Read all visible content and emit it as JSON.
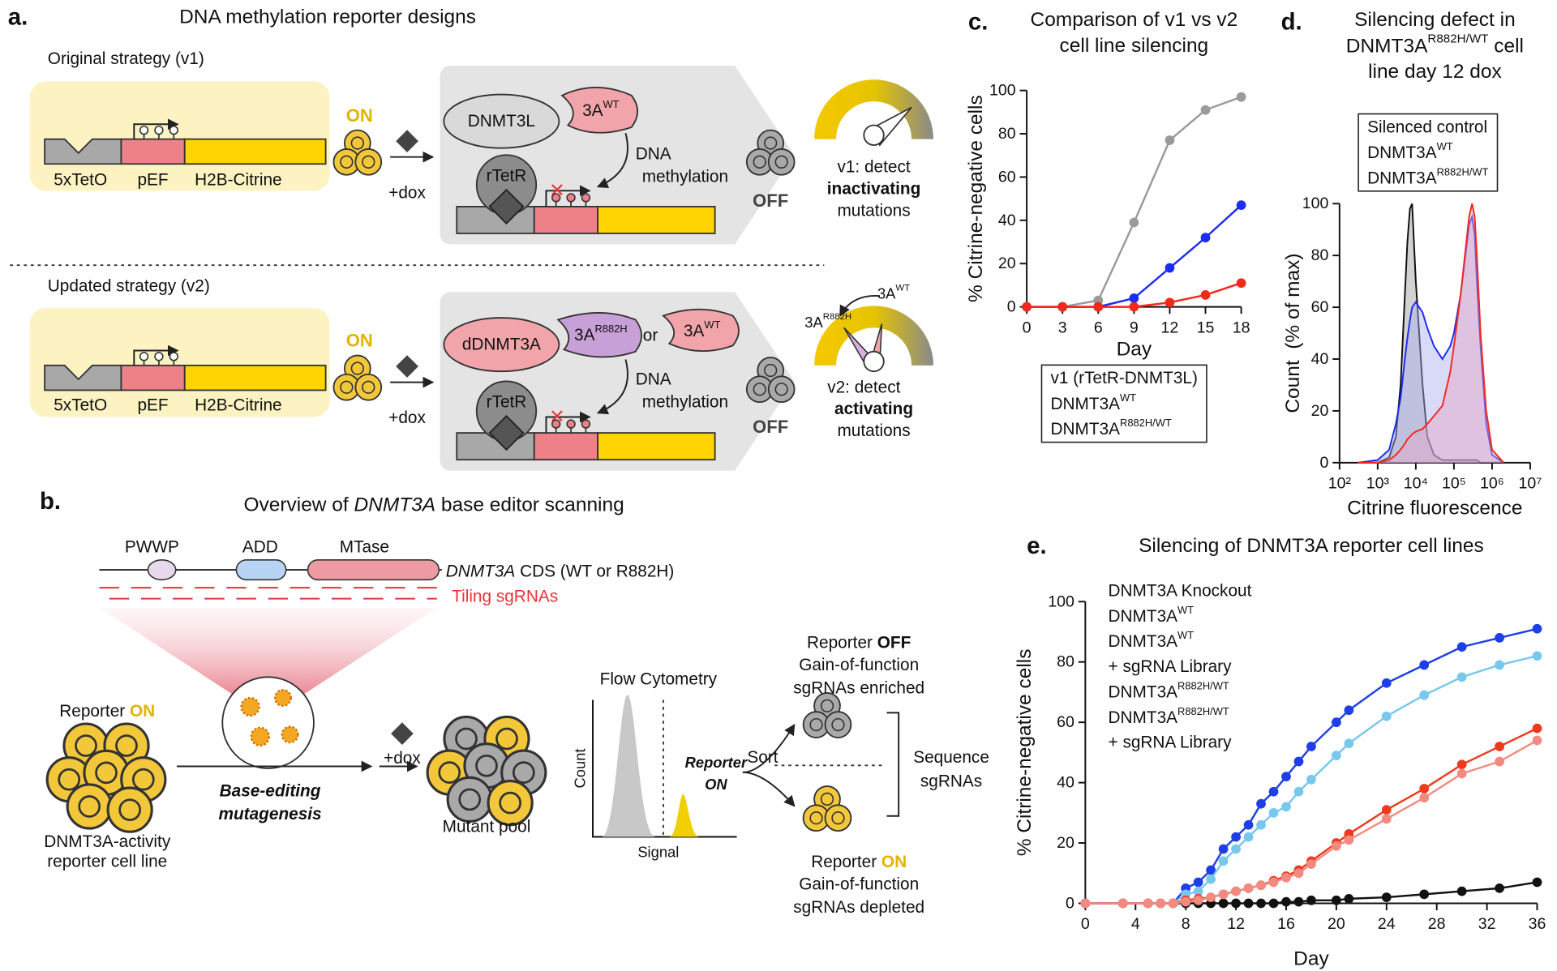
{
  "panel_a": {
    "label": "a.",
    "title": "DNA methylation reporter designs",
    "v1": {
      "heading": "Original strategy (v1)",
      "reporter": [
        "5xTetO",
        "pEF",
        "H2B-Citrine"
      ],
      "state_on": "ON",
      "treatment": "+dox",
      "state_off": "OFF",
      "writer": "DNMT3L",
      "effectors": [
        [
          "3A",
          {
            "sup": "WT"
          }
        ]
      ],
      "tether": "rTetR",
      "process": [
        "DNA",
        "methylation"
      ],
      "readout": [
        "v1: detect",
        "inactivating",
        "mutations"
      ]
    },
    "v2": {
      "heading": "Updated strategy (v2)",
      "reporter": [
        "5xTetO",
        "pEF",
        "H2B-Citrine"
      ],
      "state_on": "ON",
      "treatment": "+dox",
      "state_off": "OFF",
      "writer": "dDNMT3A",
      "effectors": [
        [
          "3A",
          {
            "sup": "R882H"
          }
        ],
        [
          "3A",
          {
            "sup": "WT"
          }
        ]
      ],
      "connector": "or",
      "tether": "rTetR",
      "process": [
        "DNA",
        "methylation"
      ],
      "gauge_labels": [
        [
          "3A",
          {
            "sup": "WT"
          }
        ],
        [
          "3A",
          {
            "sup": "R882H"
          }
        ]
      ],
      "readout": [
        "v2: detect",
        "activating",
        "mutations"
      ]
    }
  },
  "panel_b": {
    "label": "b.",
    "title": [
      "Overview of ",
      {
        "i": "DNMT3A"
      },
      " base editor scanning"
    ],
    "domains": [
      "PWWP",
      "ADD",
      "MTase"
    ],
    "gene": [
      {
        "i": "DNMT3A"
      },
      " CDS (WT or R882H)"
    ],
    "guides": "Tiling sgRNAs",
    "start": {
      "state": [
        "Reporter ",
        {
          "hl": "ON"
        }
      ],
      "description": [
        "DNMT3A-activity",
        "reporter cell line"
      ]
    },
    "step": [
      "Base-editing",
      "mutagenesis"
    ],
    "treatment": "+dox",
    "pool": "Mutant pool",
    "assay": {
      "title": "Flow Cytometry",
      "ylabel": "Count",
      "xlabel": "Signal",
      "gate": [
        "Reporter",
        "ON"
      ]
    },
    "sort": "Sort",
    "off_fraction": [
      [
        "Reporter ",
        {
          "b": "OFF"
        }
      ],
      "Gain-of-function",
      "sgRNAs enriched"
    ],
    "on_fraction": [
      [
        "Reporter ",
        {
          "hl": "ON"
        }
      ],
      "Gain-of-function",
      "sgRNAs depleted"
    ],
    "sequence": [
      "Sequence",
      "sgRNAs"
    ]
  },
  "chart_data": [
    {
      "type": "line",
      "label": "c.",
      "title": [
        "Comparison of v1 vs v2",
        "cell line silencing"
      ],
      "xlabel": "Day",
      "ylabel": "% Citrine-negative cells",
      "x": [
        0,
        3,
        6,
        9,
        12,
        15,
        18
      ],
      "xlim": [
        0,
        18
      ],
      "xticks": [
        0,
        3,
        6,
        9,
        12,
        15,
        18
      ],
      "ylim": [
        0,
        100
      ],
      "yticks": [
        0,
        20,
        40,
        60,
        80,
        100
      ],
      "legend": "bottom",
      "series": [
        {
          "name": "v1 (rTetR-DNMT3L)",
          "color": "#9a9a9a",
          "values": [
            0,
            0,
            3,
            39,
            77,
            91,
            97
          ]
        },
        {
          "name": [
            "DNMT3A",
            {
              "sup": "WT"
            }
          ],
          "color": "#1c2cf2",
          "values": [
            0,
            0,
            0,
            4,
            18,
            32,
            47
          ]
        },
        {
          "name": [
            "DNMT3A",
            {
              "sup": "R882H/WT"
            }
          ],
          "color": "#f5281c",
          "values": [
            0,
            0,
            0,
            0,
            2,
            5.5,
            11
          ]
        }
      ]
    },
    {
      "type": "area",
      "label": "d.",
      "title": [
        "Silencing defect in",
        [
          "DNMT3A",
          {
            "sup": "R882H/WT"
          },
          " cell"
        ],
        "line day 12 dox"
      ],
      "xlabel": "Citrine fluorescence",
      "ylabel": "Count  (% of max)",
      "xscale": "log",
      "x": [
        300,
        1000,
        2000,
        3000,
        4000,
        5000,
        6000,
        7000,
        8000,
        10000,
        15000,
        20000,
        30000,
        50000,
        80000,
        100000,
        150000,
        200000,
        250000,
        300000,
        350000,
        400000,
        500000,
        700000,
        1000000,
        2000000
      ],
      "xlim": [
        100,
        10000000
      ],
      "xticks": [
        {
          "value": 100,
          "label": "10²"
        },
        {
          "value": 1000,
          "label": "10³"
        },
        {
          "value": 10000,
          "label": "10⁴"
        },
        {
          "value": 100000,
          "label": "10⁵"
        },
        {
          "value": 1000000,
          "label": "10⁶"
        },
        {
          "value": 10000000,
          "label": "10⁷"
        }
      ],
      "ylim": [
        0,
        100
      ],
      "yticks": [
        0,
        20,
        40,
        60,
        80,
        100
      ],
      "legend": "top",
      "series": [
        {
          "name": "Silenced control",
          "color": "#111111",
          "fill": "#9c9c9c",
          "values": [
            0,
            0,
            2,
            10,
            30,
            60,
            85,
            98,
            100,
            70,
            30,
            10,
            3,
            1,
            1,
            1,
            1,
            1,
            1,
            1,
            1,
            1,
            0,
            0,
            0,
            0
          ]
        },
        {
          "name": [
            "DNMT3A",
            {
              "sup": "WT"
            }
          ],
          "color": "#1c2cf2",
          "fill": "#a8aef0",
          "values": [
            0,
            1,
            5,
            15,
            25,
            38,
            48,
            55,
            60,
            62,
            58,
            52,
            45,
            40,
            45,
            50,
            65,
            80,
            92,
            95,
            88,
            70,
            45,
            15,
            3,
            0
          ]
        },
        {
          "name": [
            "DNMT3A",
            {
              "sup": "R882H/WT"
            }
          ],
          "color": "#f5281c",
          "fill": "#e6a4c4",
          "values": [
            0,
            0,
            1,
            3,
            5,
            7,
            9,
            10,
            11,
            12,
            13,
            15,
            18,
            22,
            35,
            45,
            65,
            82,
            95,
            100,
            95,
            80,
            50,
            20,
            5,
            0
          ]
        }
      ]
    },
    {
      "type": "line",
      "label": "e.",
      "title": [
        "Silencing of DNMT3A reporter cell lines"
      ],
      "xlabel": "Day",
      "ylabel": "% Citrine-negative cells",
      "x": [
        0,
        3,
        5,
        6,
        7,
        8,
        9,
        10,
        11,
        12,
        13,
        14,
        15,
        16,
        17,
        18,
        20,
        21,
        24,
        27,
        30,
        33,
        36
      ],
      "xlim": [
        0,
        36
      ],
      "xticks": [
        0,
        4,
        8,
        12,
        16,
        20,
        24,
        28,
        32,
        36
      ],
      "ylim": [
        0,
        100
      ],
      "yticks": [
        0,
        20,
        40,
        60,
        80,
        100
      ],
      "legend": "upper left",
      "series": [
        {
          "name": "DNMT3A Knockout",
          "color": "#111111",
          "values": [
            0,
            0,
            0,
            0,
            0,
            0,
            0,
            0,
            0,
            0,
            0,
            0,
            0,
            0.5,
            0.5,
            1,
            1,
            1.5,
            2,
            3,
            4,
            5,
            7
          ]
        },
        {
          "name": [
            "DNMT3A",
            {
              "sup": "WT"
            }
          ],
          "color": "#1f3fe6",
          "values": [
            0,
            0,
            0,
            0,
            0,
            5,
            7,
            11,
            18,
            22,
            26,
            33,
            37,
            42,
            47,
            52,
            60,
            64,
            73,
            79,
            85,
            88,
            91
          ]
        },
        {
          "name": [
            "DNMT3A",
            {
              "sup": "WT"
            }
          ],
          "name_line2": "+ sgRNA Library",
          "color": "#78c8ee",
          "values": [
            0,
            0,
            0,
            0,
            0,
            3,
            4,
            8,
            14,
            18,
            22,
            26,
            30,
            32,
            37,
            41,
            49,
            53,
            62,
            69,
            75,
            79,
            82
          ]
        },
        {
          "name": [
            "DNMT3A",
            {
              "sup": "R882H/WT"
            }
          ],
          "color": "#ee3a1c",
          "values": [
            0,
            0,
            0,
            0,
            0,
            1,
            1.5,
            2,
            3,
            4,
            5,
            6,
            7.5,
            9,
            11,
            14,
            20,
            23,
            31,
            38,
            46,
            52,
            58
          ]
        },
        {
          "name": [
            "DNMT3A",
            {
              "sup": "R882H/WT"
            }
          ],
          "name_line2": "+ sgRNA Library",
          "color": "#f28a80",
          "values": [
            0,
            0,
            0,
            0,
            0,
            0.5,
            1,
            2,
            3,
            4,
            5,
            6,
            7,
            8.5,
            10,
            13,
            19,
            21,
            28,
            35,
            43,
            47,
            54
          ]
        }
      ]
    }
  ]
}
